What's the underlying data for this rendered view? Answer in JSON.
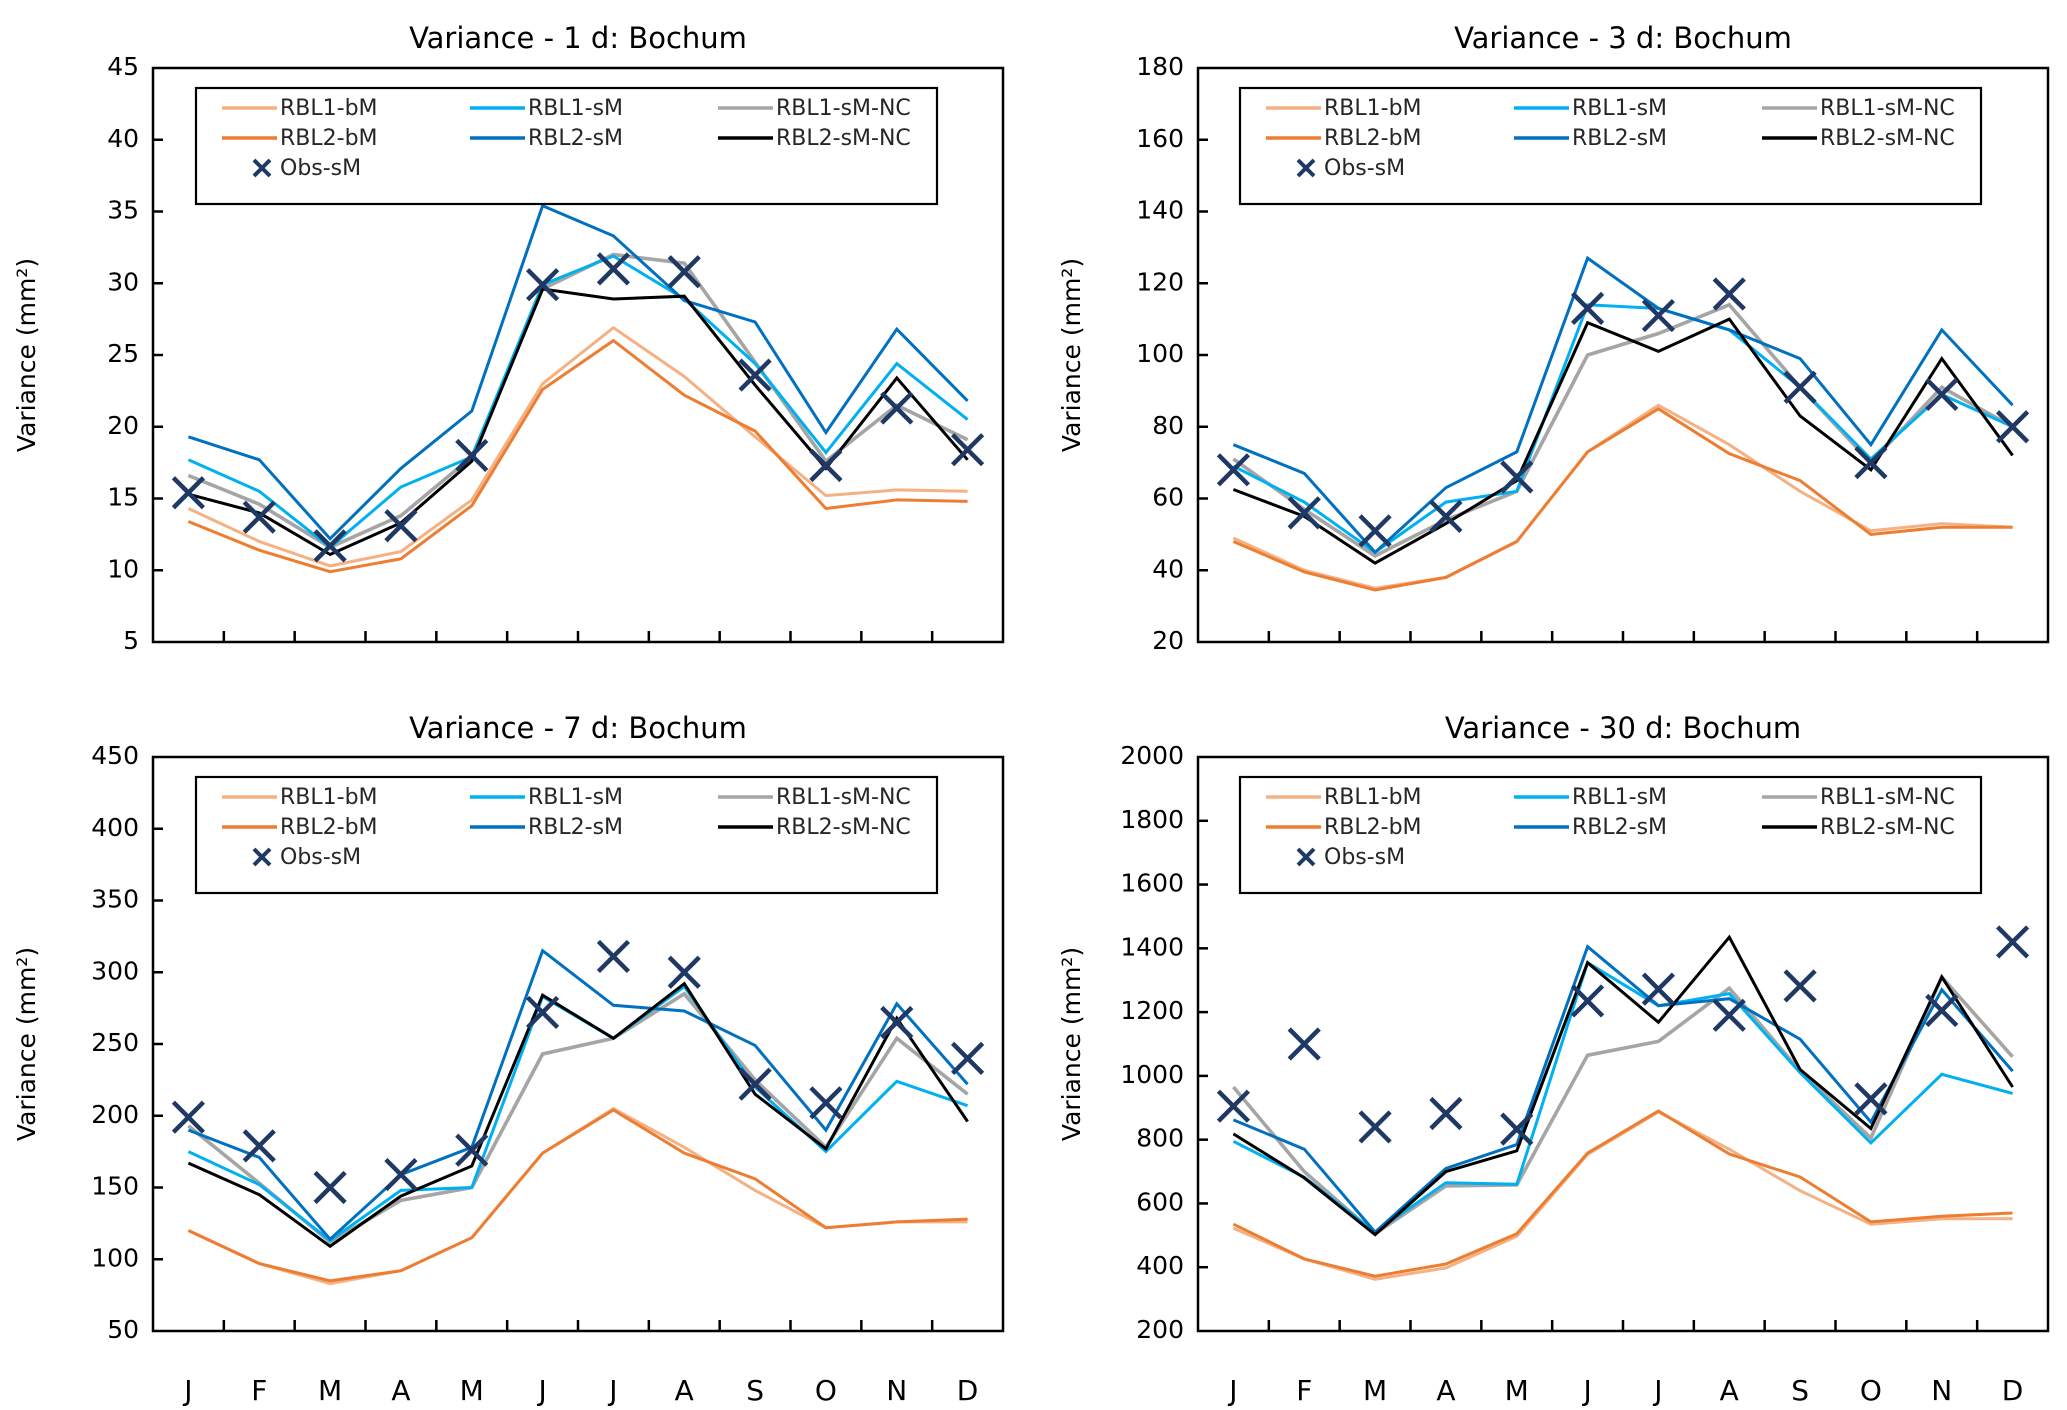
{
  "figure": {
    "months": [
      "J",
      "F",
      "M",
      "A",
      "M",
      "J",
      "J",
      "A",
      "S",
      "O",
      "N",
      "D"
    ]
  },
  "series_styles": [
    {
      "name": "RBL1-bM",
      "color": "#F4B183",
      "kind": "line"
    },
    {
      "name": "RBL1-sM",
      "color": "#00B0F0",
      "kind": "line"
    },
    {
      "name": "RBL1-sM-NC",
      "color": "#A5A5A5",
      "kind": "line"
    },
    {
      "name": "RBL2-bM",
      "color": "#ED7D31",
      "kind": "line"
    },
    {
      "name": "RBL2-sM",
      "color": "#0070C0",
      "kind": "line"
    },
    {
      "name": "RBL2-sM-NC",
      "color": "#000000",
      "kind": "line"
    },
    {
      "name": "Obs-sM",
      "color": "#1F3864",
      "kind": "marker-x"
    }
  ],
  "chart_data": [
    {
      "type": "line",
      "title": "Variance - 1 d: Bochum",
      "xlabel": "",
      "ylabel": "Variance (mm²)",
      "categories": [
        "J",
        "F",
        "M",
        "A",
        "M",
        "J",
        "J",
        "A",
        "S",
        "O",
        "N",
        "D"
      ],
      "show_month_labels": false,
      "ylim": [
        5,
        45
      ],
      "yticks": [
        5,
        10,
        15,
        20,
        25,
        30,
        35,
        40,
        45
      ],
      "legend": "top-center, inside",
      "grid": false,
      "series": [
        {
          "name": "RBL1-bM",
          "values": [
            14.3,
            12.0,
            10.3,
            11.3,
            14.9,
            23.0,
            26.9,
            23.5,
            19.3,
            15.2,
            15.6,
            15.5
          ]
        },
        {
          "name": "RBL1-sM",
          "values": [
            17.7,
            15.5,
            11.6,
            15.8,
            17.9,
            29.9,
            31.9,
            28.9,
            24.4,
            18.2,
            24.4,
            20.5
          ]
        },
        {
          "name": "RBL1-sM-NC",
          "values": [
            16.6,
            14.6,
            11.6,
            13.8,
            17.9,
            29.6,
            32.0,
            31.4,
            24.5,
            17.6,
            21.5,
            19.1
          ]
        },
        {
          "name": "RBL2-bM",
          "values": [
            13.4,
            11.4,
            9.9,
            10.8,
            14.5,
            22.6,
            26.0,
            22.2,
            19.7,
            14.3,
            14.9,
            14.8
          ]
        },
        {
          "name": "RBL2-sM",
          "values": [
            19.3,
            17.7,
            12.2,
            17.1,
            21.1,
            35.4,
            33.3,
            28.8,
            27.3,
            19.6,
            26.8,
            21.8
          ]
        },
        {
          "name": "RBL2-sM-NC",
          "values": [
            15.3,
            14.0,
            11.1,
            13.3,
            17.6,
            29.6,
            28.9,
            29.1,
            22.9,
            17.1,
            23.4,
            17.7
          ]
        },
        {
          "name": "Obs-sM",
          "values": [
            15.4,
            13.7,
            11.7,
            13.1,
            18.0,
            29.9,
            31.0,
            30.8,
            23.6,
            17.3,
            21.3,
            18.4
          ]
        }
      ]
    },
    {
      "type": "line",
      "title": "Variance - 3 d: Bochum",
      "xlabel": "",
      "ylabel": "Variance (mm²)",
      "categories": [
        "J",
        "F",
        "M",
        "A",
        "M",
        "J",
        "J",
        "A",
        "S",
        "O",
        "N",
        "D"
      ],
      "show_month_labels": false,
      "ylim": [
        20,
        180
      ],
      "yticks": [
        20,
        40,
        60,
        80,
        100,
        120,
        140,
        160,
        180
      ],
      "legend": "top-center, inside",
      "grid": false,
      "series": [
        {
          "name": "RBL1-bM",
          "values": [
            49,
            40,
            35,
            38,
            48,
            73,
            86,
            75,
            62,
            51,
            53,
            52
          ]
        },
        {
          "name": "RBL1-sM",
          "values": [
            69,
            59,
            45,
            59,
            62,
            114,
            113,
            107,
            91,
            71,
            89,
            80
          ]
        },
        {
          "name": "RBL1-sM-NC",
          "values": [
            71,
            57,
            44,
            54,
            62,
            100,
            106,
            114,
            91,
            70,
            91,
            80
          ]
        },
        {
          "name": "RBL2-bM",
          "values": [
            48,
            39.5,
            34.5,
            38,
            48,
            73,
            85,
            72.5,
            65,
            50,
            52,
            52
          ]
        },
        {
          "name": "RBL2-sM",
          "values": [
            75,
            67,
            45,
            63,
            73,
            127,
            113,
            107,
            99,
            75,
            107,
            86
          ]
        },
        {
          "name": "RBL2-sM-NC",
          "values": [
            62.5,
            55,
            42,
            53,
            65,
            109,
            101,
            110,
            83,
            68,
            99,
            72
          ]
        },
        {
          "name": "Obs-sM",
          "values": [
            68,
            56,
            51,
            55,
            66,
            113,
            111,
            117,
            91,
            70,
            89,
            80
          ]
        }
      ]
    },
    {
      "type": "line",
      "title": "Variance - 7 d: Bochum",
      "xlabel": "",
      "ylabel": "Variance (mm²)",
      "categories": [
        "J",
        "F",
        "M",
        "A",
        "M",
        "J",
        "J",
        "A",
        "S",
        "O",
        "N",
        "D"
      ],
      "show_month_labels": true,
      "ylim": [
        50,
        450
      ],
      "yticks": [
        50,
        100,
        150,
        200,
        250,
        300,
        350,
        400,
        450
      ],
      "legend": "top-center, inside",
      "grid": false,
      "series": [
        {
          "name": "RBL1-bM",
          "values": [
            120,
            97,
            83,
            92,
            115,
            174,
            205,
            178,
            148,
            122,
            126,
            126
          ]
        },
        {
          "name": "RBL1-sM",
          "values": [
            175,
            152,
            113,
            148,
            150,
            283,
            254,
            290,
            220,
            175,
            224,
            207
          ]
        },
        {
          "name": "RBL1-sM-NC",
          "values": [
            193,
            153,
            112,
            141,
            150,
            243,
            254,
            285,
            225,
            178,
            254,
            215
          ]
        },
        {
          "name": "RBL2-bM",
          "values": [
            120,
            97,
            85,
            92,
            115,
            174,
            204,
            174,
            156,
            122,
            126,
            128
          ]
        },
        {
          "name": "RBL2-sM",
          "values": [
            190,
            171,
            114,
            159,
            178,
            315,
            277,
            273,
            249,
            190,
            278,
            222
          ]
        },
        {
          "name": "RBL2-sM-NC",
          "values": [
            167,
            145,
            109,
            144,
            165,
            284,
            254,
            292,
            215,
            177,
            268,
            196
          ]
        },
        {
          "name": "Obs-sM",
          "values": [
            199,
            179,
            150,
            159,
            176,
            272,
            311,
            300,
            222,
            209,
            265,
            240
          ]
        }
      ]
    },
    {
      "type": "line",
      "title": "Variance - 30 d: Bochum",
      "xlabel": "",
      "ylabel": "Variance (mm²)",
      "categories": [
        "J",
        "F",
        "M",
        "A",
        "M",
        "J",
        "J",
        "A",
        "S",
        "O",
        "N",
        "D"
      ],
      "show_month_labels": true,
      "ylim": [
        200,
        2000
      ],
      "yticks": [
        200,
        400,
        600,
        800,
        1000,
        1200,
        1400,
        1600,
        1800,
        2000
      ],
      "legend": "top-center, inside",
      "grid": false,
      "series": [
        {
          "name": "RBL1-bM",
          "values": [
            522,
            426,
            362,
            398,
            497,
            754,
            887,
            770,
            640,
            535,
            552,
            552
          ]
        },
        {
          "name": "RBL1-sM",
          "values": [
            795,
            682,
            510,
            665,
            660,
            1355,
            1220,
            1258,
            1010,
            790,
            1005,
            945
          ]
        },
        {
          "name": "RBL1-sM-NC",
          "values": [
            965,
            700,
            505,
            655,
            658,
            1065,
            1108,
            1275,
            1015,
            805,
            1310,
            1060
          ]
        },
        {
          "name": "RBL2-bM",
          "values": [
            535,
            426,
            372,
            410,
            505,
            758,
            890,
            755,
            683,
            542,
            560,
            570
          ]
        },
        {
          "name": "RBL2-sM",
          "values": [
            862,
            770,
            510,
            710,
            785,
            1405,
            1220,
            1242,
            1115,
            855,
            1270,
            1015
          ]
        },
        {
          "name": "RBL2-sM-NC",
          "values": [
            818,
            680,
            502,
            700,
            765,
            1355,
            1168,
            1435,
            1020,
            835,
            1310,
            965
          ]
        },
        {
          "name": "Obs-sM",
          "values": [
            905,
            1100,
            840,
            882,
            833,
            1235,
            1272,
            1190,
            1282,
            928,
            1205,
            1420
          ]
        }
      ]
    }
  ]
}
